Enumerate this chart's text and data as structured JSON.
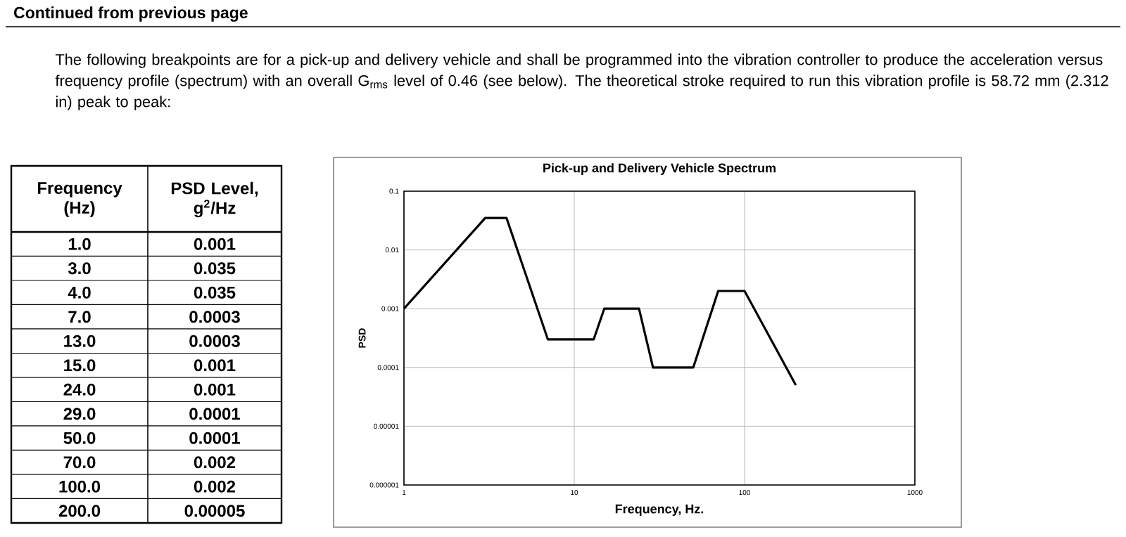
{
  "chart_data": {
    "type": "line",
    "title": "Pick-up and Delivery Vehicle Spectrum",
    "xlabel": "Frequency, Hz.",
    "ylabel": "PSD",
    "annotations": [
      "Continued from previous page",
      "The following breakpoints are for a pick-up and delivery vehicle and shall be programmed into the vibration controller to produce the acceleration versus frequency profile (spectrum) with an overall G$_{rms}$ level of 0.46 (see below).  The theoretical stroke required to run this vibration profile is 58.72 mm (2.312 in) peak to peak:",
      "Frequency (Hz)",
      "PSD Level, g$^{2}$/Hz",
      "1.0",
      "0.001",
      "3.0",
      "0.035",
      "4.0",
      "0.035",
      "7.0",
      "0.0003",
      "13.0",
      "0.0003",
      "15.0",
      "0.001",
      "24.0",
      "0.001",
      "29.0",
      "0.0001",
      "50.0",
      "0.0001",
      "70.0",
      "0.002",
      "100.0",
      "0.002",
      "200.0",
      "0.00005"
    ],
    "x": [
      1,
      3,
      4,
      7,
      13,
      15,
      24,
      29,
      50,
      70,
      100,
      200
    ],
    "series": [
      {
        "color": "#000000",
        "values": [
          0.001,
          0.035,
          0.035,
          0.0003,
          0.0003,
          0.001,
          0.001,
          0.0001,
          0.0001,
          0.002,
          0.002,
          5e-05
        ]
      }
    ],
    "log": "xy",
    "xlim": [
      1,
      1000
    ],
    "ylim": [
      1e-06,
      0.1
    ],
    "xticks": [
      1,
      10,
      100,
      1000
    ],
    "yticks": [
      {
        "value": 1e-06,
        "label": "0.000001"
      },
      {
        "value": 1e-05,
        "label": "0.00001"
      },
      {
        "value": 0.0001,
        "label": "0.0001"
      },
      {
        "value": 0.001,
        "label": "0.001"
      },
      {
        "value": 0.01,
        "label": "0.01"
      },
      {
        "value": 0.1,
        "label": "0.1"
      }
    ],
    "grid": true
  }
}
